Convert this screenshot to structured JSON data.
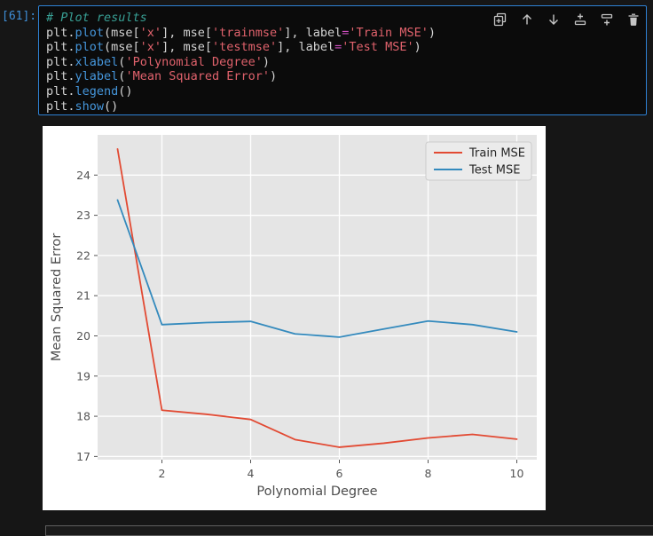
{
  "notebook": {
    "cell": {
      "execution_count": "[61]:",
      "code_lines": [
        [
          [
            "# Plot results",
            "comment"
          ]
        ],
        [
          [
            "plt.",
            "plain"
          ],
          [
            "plot",
            "func"
          ],
          [
            "(mse[",
            "plain"
          ],
          [
            "'x'",
            "string"
          ],
          [
            "], mse[",
            "plain"
          ],
          [
            "'trainmse'",
            "string"
          ],
          [
            "], label",
            "plain"
          ],
          [
            "=",
            "operator"
          ],
          [
            "'Train MSE'",
            "string"
          ],
          [
            ")",
            "plain"
          ]
        ],
        [
          [
            "plt.",
            "plain"
          ],
          [
            "plot",
            "func"
          ],
          [
            "(mse[",
            "plain"
          ],
          [
            "'x'",
            "string"
          ],
          [
            "], mse[",
            "plain"
          ],
          [
            "'testmse'",
            "string"
          ],
          [
            "], label",
            "plain"
          ],
          [
            "=",
            "operator"
          ],
          [
            "'Test MSE'",
            "string"
          ],
          [
            ")",
            "plain"
          ]
        ],
        [
          [
            "plt.",
            "plain"
          ],
          [
            "xlabel",
            "func"
          ],
          [
            "(",
            "plain"
          ],
          [
            "'Polynomial Degree'",
            "string"
          ],
          [
            ")",
            "plain"
          ]
        ],
        [
          [
            "plt.",
            "plain"
          ],
          [
            "ylabel",
            "func"
          ],
          [
            "(",
            "plain"
          ],
          [
            "'Mean Squared Error'",
            "string"
          ],
          [
            ")",
            "plain"
          ]
        ],
        [
          [
            "plt.",
            "plain"
          ],
          [
            "legend",
            "func"
          ],
          [
            "()",
            "plain"
          ]
        ],
        [
          [
            "plt.",
            "plain"
          ],
          [
            "show",
            "func"
          ],
          [
            "()",
            "plain"
          ]
        ]
      ],
      "toolbar_icons": [
        "duplicate-cell",
        "move-up",
        "move-down",
        "insert-cell-above",
        "insert-cell-below",
        "delete-cell"
      ]
    },
    "colors": {
      "focus_border": "#2e81d4",
      "cell_background": "#0b0b0b",
      "page_background": "#161616",
      "execution_count": "#3f8fd8",
      "toolbar_icon": "#c5c5c5"
    }
  },
  "chart_data": {
    "type": "line",
    "x": [
      1,
      2,
      3,
      4,
      5,
      6,
      7,
      8,
      9,
      10
    ],
    "series": [
      {
        "name": "Train MSE",
        "color": "#E24A33",
        "values": [
          24.65,
          18.15,
          18.05,
          17.92,
          17.42,
          17.23,
          17.33,
          17.46,
          17.55,
          17.43
        ]
      },
      {
        "name": "Test MSE",
        "color": "#348ABD",
        "values": [
          23.38,
          20.28,
          20.33,
          20.36,
          20.05,
          19.97,
          20.17,
          20.37,
          20.28,
          20.1
        ]
      }
    ],
    "title": "",
    "xlabel": "Polynomial Degree",
    "ylabel": "Mean Squared Error",
    "xticks": [
      2,
      4,
      6,
      8,
      10
    ],
    "yticks": [
      17,
      18,
      19,
      20,
      21,
      22,
      23,
      24
    ],
    "xlim": [
      0.55,
      10.45
    ],
    "ylim": [
      16.92,
      25.0
    ],
    "grid": true,
    "legend_position": "upper right",
    "style": {
      "plot_bg": "#E5E5E5",
      "grid_color": "#FFFFFF",
      "fig_bg": "#FFFFFF",
      "tick_color": "#555555",
      "label_color": "#4D4D4D",
      "legend_bg": "#EBEBEB",
      "legend_border": "#CCCCCC",
      "legend_text": "#262626"
    }
  }
}
